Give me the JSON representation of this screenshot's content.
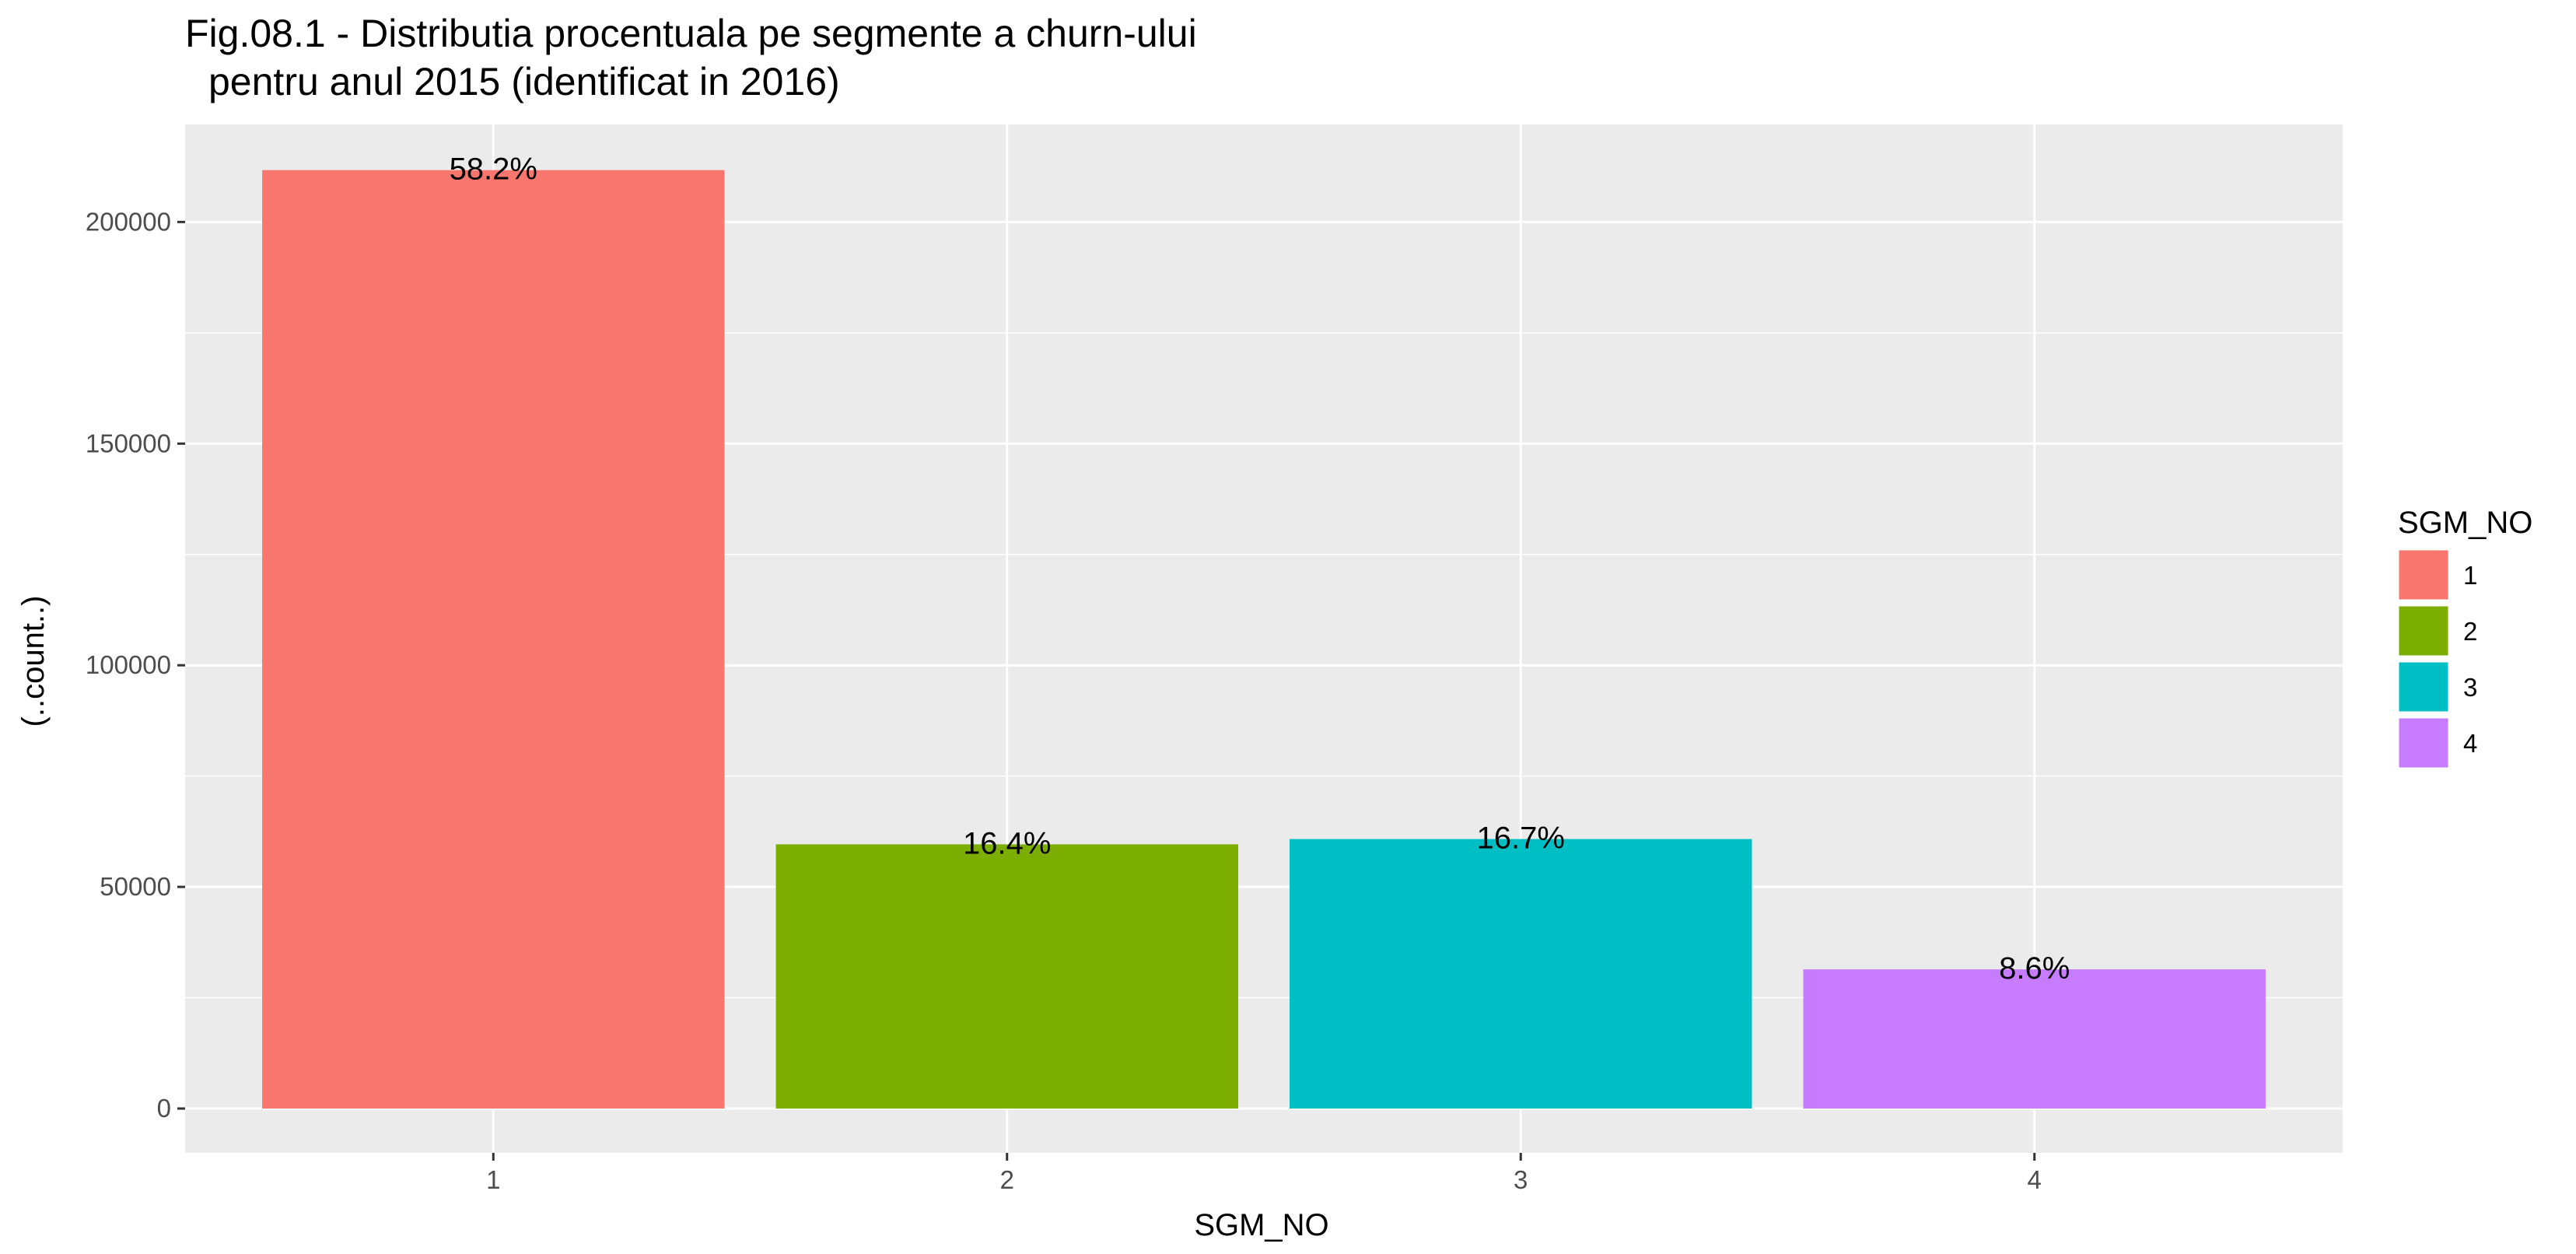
{
  "chart_data": {
    "type": "bar",
    "title": "Fig.08.1 - Distributia procentuala pe segmente a churn-ului",
    "subtitle": "pentru anul 2015 (identificat in 2016)",
    "xlabel": "SGM_NO",
    "ylabel": "(..count..)",
    "categories": [
      "1",
      "2",
      "3",
      "4"
    ],
    "values": [
      211700,
      59600,
      60800,
      31400
    ],
    "data_labels": [
      "58.2%",
      "16.4%",
      "16.7%",
      "8.6%"
    ],
    "colors": [
      "#F8766D",
      "#7CAE00",
      "#00BFC4",
      "#C77CFF"
    ],
    "ylim": [
      -10000,
      222000
    ],
    "y_ticks": [
      0,
      50000,
      100000,
      150000,
      200000
    ],
    "y_tick_labels": [
      "0",
      "50000",
      "100000",
      "150000",
      "200000"
    ],
    "grid": true,
    "panel_background": "#EBEBEB",
    "grid_color": "#FFFFFF",
    "legend": {
      "title": "SGM_NO",
      "placement": "right",
      "entries": [
        "1",
        "2",
        "3",
        "4"
      ]
    }
  }
}
